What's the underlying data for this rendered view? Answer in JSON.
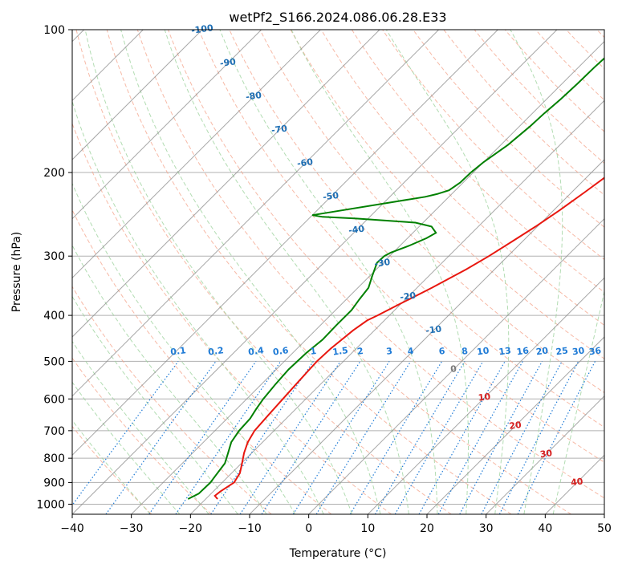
{
  "chart_data": {
    "type": "line",
    "title": "wetPf2_S166.2024.086.06.28.E33",
    "xlabel": "Temperature (°C)",
    "ylabel": "Pressure (hPa)",
    "xlim": [
      -40,
      50
    ],
    "ylim": [
      1050,
      100
    ],
    "y_scale": "log",
    "grid": true,
    "x_ticks": [
      -40,
      -30,
      -20,
      -10,
      0,
      10,
      20,
      30,
      40,
      50
    ],
    "y_ticks": [
      100,
      200,
      300,
      400,
      500,
      600,
      700,
      800,
      900,
      1000
    ],
    "colors": {
      "temperature": "#e8170f",
      "dewpoint": "#008000",
      "dry_adiabat": "#f4a38a",
      "moist_adiabat": "#9fd39f",
      "mixing_ratio": "#1f7bd6",
      "isotherm": "#8a8a8a",
      "upper_label": "#1f6fb4",
      "lower_label": "#d62020"
    },
    "series": [
      {
        "pressure": [
          975,
          960,
          940,
          900,
          860,
          820,
          780,
          740,
          700,
          650,
          600,
          550,
          500,
          470,
          430,
          410,
          400,
          380,
          350,
          320,
          300,
          280,
          260,
          240,
          220,
          200,
          180,
          160,
          140,
          125,
          110,
          100
        ],
        "temperature": [
          -18,
          -19,
          -18.8,
          -18,
          -18.6,
          -19.9,
          -21.3,
          -22.5,
          -23.3,
          -23.6,
          -23.9,
          -24.2,
          -24.5,
          -24.3,
          -23.6,
          -22.9,
          -22.0,
          -20.3,
          -17.5,
          -14.8,
          -13.2,
          -11.8,
          -10.3,
          -9.0,
          -7.8,
          -6.6,
          -5.3,
          -3.8,
          -2.4,
          -1.4,
          -0.7,
          -0.4
        ]
      },
      {
        "pressure": [
          975,
          950,
          900,
          870,
          820,
          780,
          740,
          700,
          660,
          630,
          600,
          560,
          520,
          480,
          450,
          420,
          390,
          370,
          350,
          330,
          310,
          300,
          295,
          285,
          275,
          268,
          260,
          255,
          250,
          248,
          246,
          230,
          225,
          222,
          218,
          210,
          200,
          190,
          175,
          160,
          150,
          140,
          130,
          120,
          110,
          100
        ],
        "dewpoint": [
          -23,
          -22.1,
          -22.0,
          -22.3,
          -22.8,
          -24,
          -25.3,
          -25.9,
          -26.1,
          -26.7,
          -27.2,
          -27.6,
          -27.9,
          -27.7,
          -27.2,
          -27.3,
          -27.3,
          -27.8,
          -28.2,
          -29.6,
          -31.0,
          -30.9,
          -30.4,
          -28.4,
          -26.8,
          -26.1,
          -27.9,
          -31.3,
          -42,
          -48,
          -50,
          -38,
          -34,
          -32.5,
          -31.1,
          -30.5,
          -30.4,
          -30.0,
          -28.8,
          -28.2,
          -28.0,
          -27.6,
          -27.4,
          -27.3,
          -27.0,
          -26.7
        ]
      }
    ],
    "upper_isotherm_labels": [
      "-100",
      "-90",
      "-80",
      "-70",
      "-60",
      "-50",
      "-40",
      "-30",
      "-20",
      "-10"
    ],
    "mixing_ratio_labels": [
      "0.1",
      "0.2",
      "0.4",
      "0.6",
      "1",
      "1.5",
      "2",
      "3",
      "4",
      "6",
      "8",
      "10",
      "13",
      "16",
      "20",
      "25",
      "30",
      "36"
    ],
    "lower_isotherm_labels": [
      "0",
      "10",
      "20",
      "30",
      "40"
    ]
  }
}
